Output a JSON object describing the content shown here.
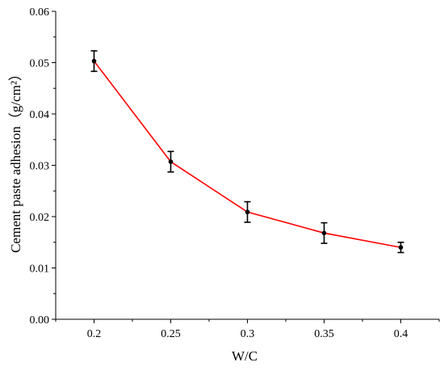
{
  "chart_data": {
    "type": "line",
    "xlabel": "W/C",
    "ylabel": "Cement paste adhesion（g/cm²）",
    "xlim": [
      0.175,
      0.425
    ],
    "ylim": [
      0,
      0.06
    ],
    "x_ticks": [
      "0.2",
      "0.25",
      "0.3",
      "0.35",
      "0.4"
    ],
    "y_ticks": [
      "0.00",
      "0.01",
      "0.02",
      "0.03",
      "0.04",
      "0.05",
      "0.06"
    ],
    "grid": false,
    "legend": "none",
    "series": [
      {
        "x": [
          0.2,
          0.25,
          0.3,
          0.35,
          0.4
        ],
        "values": [
          0.0503,
          0.0307,
          0.0209,
          0.0168,
          0.014
        ],
        "error": [
          0.002,
          0.002,
          0.002,
          0.002,
          0.001
        ],
        "line_color": "#ff0000",
        "marker_color": "#000000",
        "errorbar_color": "#000000"
      }
    ]
  }
}
